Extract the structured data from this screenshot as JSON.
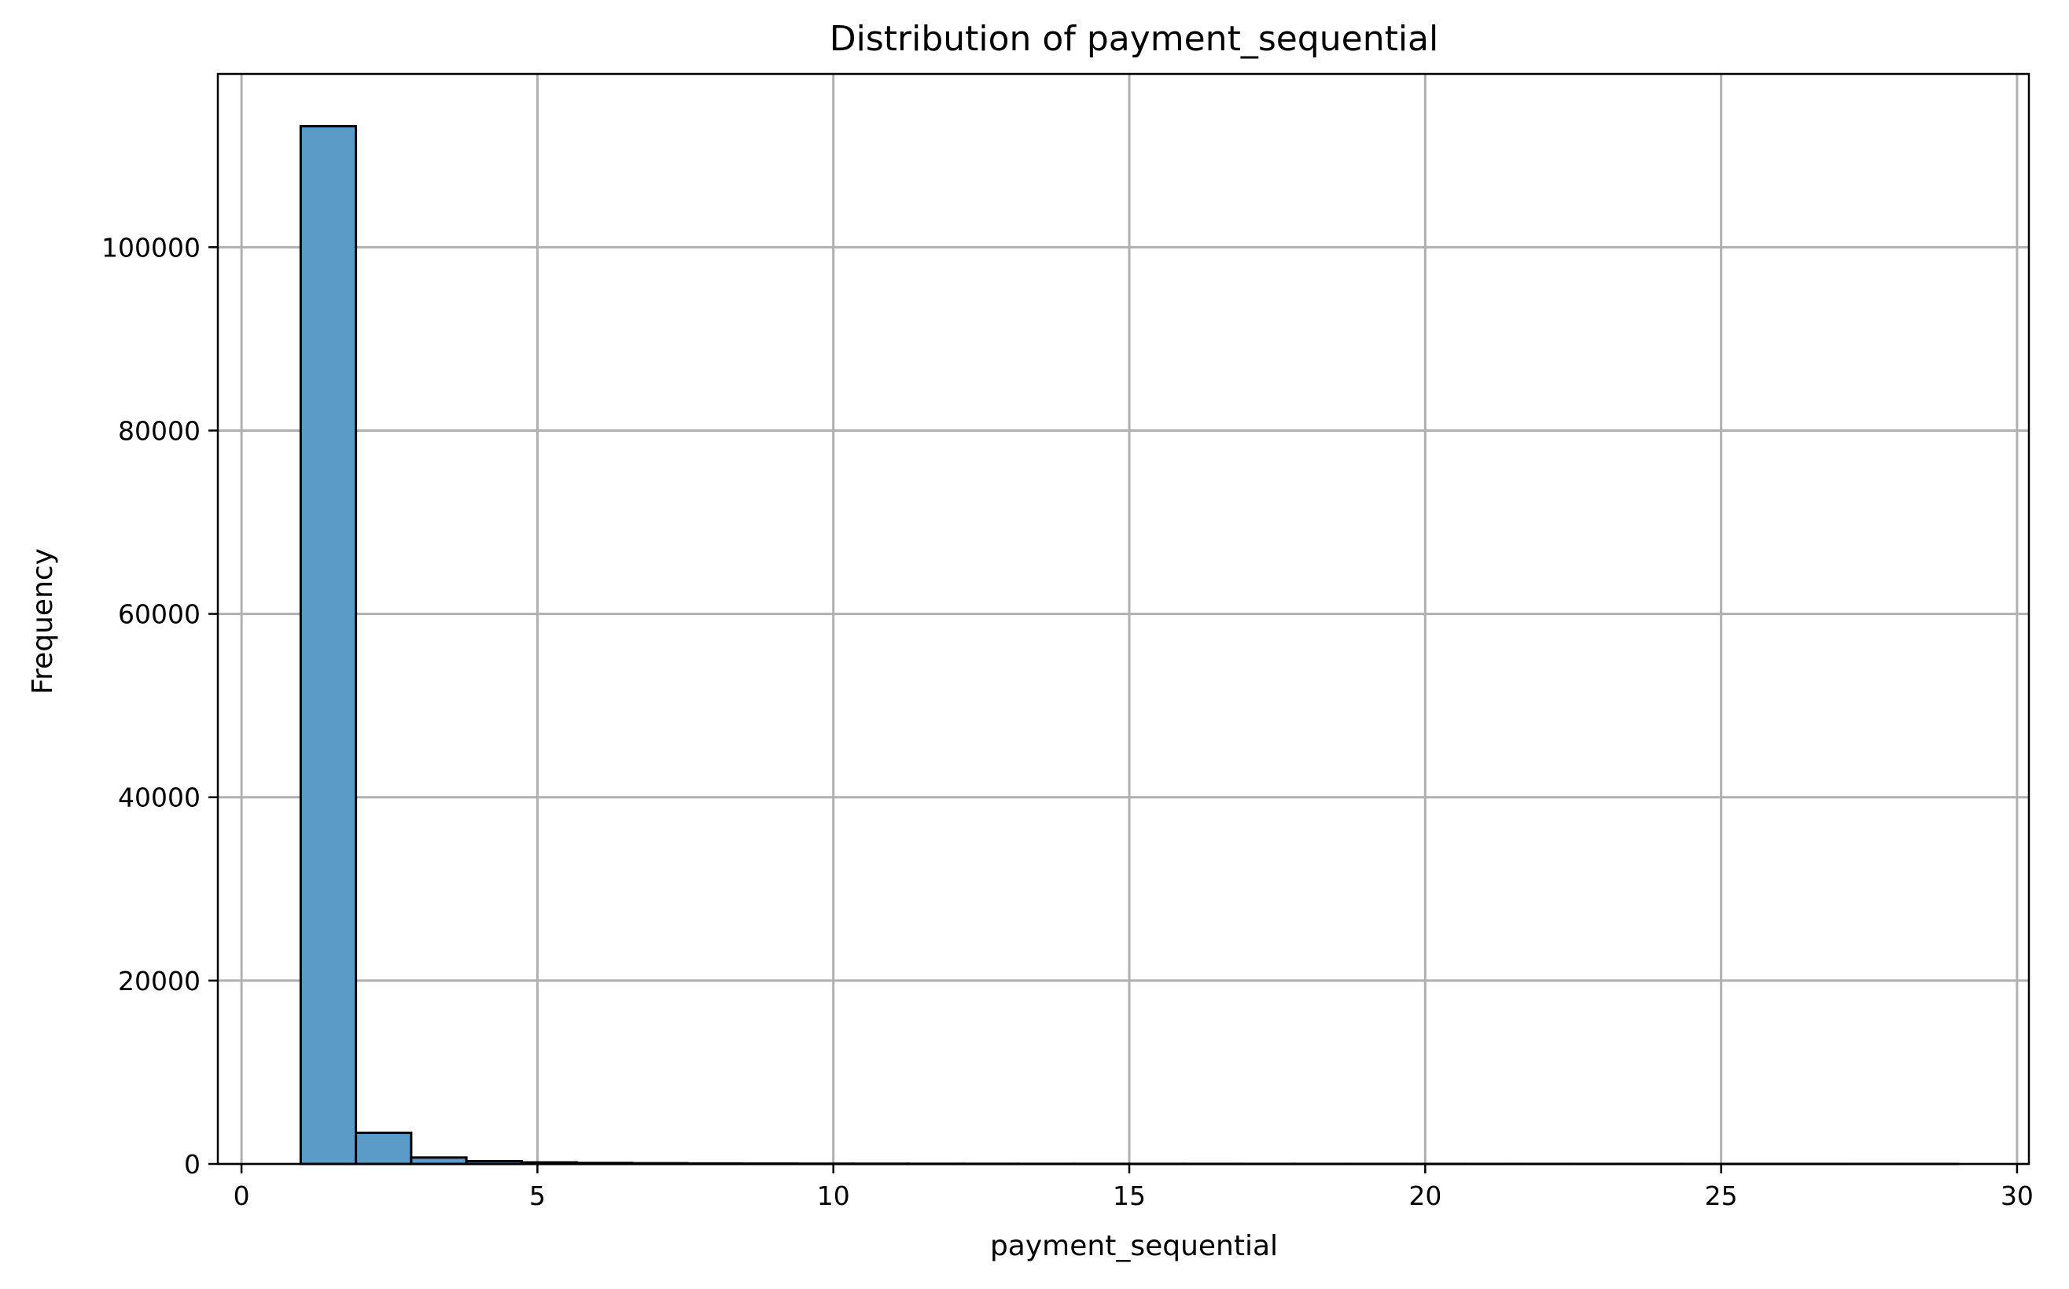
{
  "chart_data": {
    "type": "bar",
    "title": "Distribution of payment_sequential",
    "xlabel": "payment_sequential",
    "ylabel": "Frequency",
    "xlim": [
      -0.4,
      30.2
    ],
    "ylim": [
      0,
      118900
    ],
    "xticks": [
      0,
      5,
      10,
      15,
      20,
      25,
      30
    ],
    "yticks": [
      0,
      20000,
      40000,
      60000,
      80000,
      100000
    ],
    "grid": true,
    "bar_color": "#5b9bc8",
    "edge_color": "#000000",
    "bins": [
      {
        "x0": 1.0,
        "x1": 1.933,
        "value": 113200
      },
      {
        "x0": 1.933,
        "x1": 2.867,
        "value": 3400
      },
      {
        "x0": 2.867,
        "x1": 3.8,
        "value": 700
      },
      {
        "x0": 3.8,
        "x1": 4.733,
        "value": 300
      },
      {
        "x0": 4.733,
        "x1": 5.667,
        "value": 170
      },
      {
        "x0": 5.667,
        "x1": 6.6,
        "value": 110
      },
      {
        "x0": 6.6,
        "x1": 7.533,
        "value": 80
      },
      {
        "x0": 7.533,
        "x1": 8.467,
        "value": 55
      },
      {
        "x0": 8.467,
        "x1": 9.4,
        "value": 40
      },
      {
        "x0": 9.4,
        "x1": 10.333,
        "value": 30
      },
      {
        "x0": 10.333,
        "x1": 11.267,
        "value": 25
      },
      {
        "x0": 11.267,
        "x1": 12.2,
        "value": 20
      },
      {
        "x0": 12.2,
        "x1": 13.133,
        "value": 15
      },
      {
        "x0": 13.133,
        "x1": 14.067,
        "value": 12
      },
      {
        "x0": 14.067,
        "x1": 15.0,
        "value": 10
      },
      {
        "x0": 15.0,
        "x1": 15.933,
        "value": 9
      },
      {
        "x0": 15.933,
        "x1": 16.867,
        "value": 8
      },
      {
        "x0": 16.867,
        "x1": 17.8,
        "value": 7
      },
      {
        "x0": 17.8,
        "x1": 18.733,
        "value": 6
      },
      {
        "x0": 18.733,
        "x1": 19.667,
        "value": 5
      },
      {
        "x0": 19.667,
        "x1": 20.6,
        "value": 5
      },
      {
        "x0": 20.6,
        "x1": 21.533,
        "value": 4
      },
      {
        "x0": 21.533,
        "x1": 22.467,
        "value": 4
      },
      {
        "x0": 22.467,
        "x1": 23.4,
        "value": 3
      },
      {
        "x0": 23.4,
        "x1": 24.333,
        "value": 3
      },
      {
        "x0": 24.333,
        "x1": 25.267,
        "value": 2
      },
      {
        "x0": 25.267,
        "x1": 26.2,
        "value": 2
      },
      {
        "x0": 26.2,
        "x1": 27.133,
        "value": 2
      },
      {
        "x0": 27.133,
        "x1": 28.067,
        "value": 1
      },
      {
        "x0": 28.067,
        "x1": 29.0,
        "value": 1
      }
    ]
  }
}
